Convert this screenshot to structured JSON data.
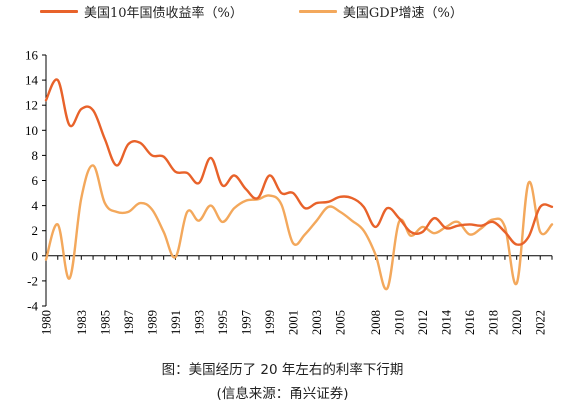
{
  "legend": {
    "series1": "美国10年国债收益率（%）",
    "series2": "美国GDP增速（%）"
  },
  "caption": {
    "title": "图：美国经历了 20 年左右的利率下行期",
    "source": "(信息来源：甬兴证券)"
  },
  "colors": {
    "yield": "#E8622A",
    "gdp": "#F3A85C",
    "axis": "#000000"
  },
  "chart_data": {
    "type": "line",
    "x": [
      1980,
      1981,
      1982,
      1983,
      1984,
      1985,
      1986,
      1987,
      1988,
      1989,
      1990,
      1991,
      1992,
      1993,
      1994,
      1995,
      1996,
      1997,
      1998,
      1999,
      2000,
      2001,
      2002,
      2003,
      2004,
      2005,
      2006,
      2007,
      2008,
      2009,
      2010,
      2011,
      2012,
      2013,
      2014,
      2015,
      2016,
      2017,
      2018,
      2019,
      2020,
      2021,
      2022,
      2023
    ],
    "x_tick_labels": [
      "1980",
      "1983",
      "1985",
      "1987",
      "1989",
      "1991",
      "1993",
      "1995",
      "1997",
      "1999",
      "2001",
      "2003",
      "2005",
      "2008",
      "2010",
      "2012",
      "2014",
      "2016",
      "2018",
      "2020",
      "2022"
    ],
    "x_ticks": [
      1980,
      1983,
      1985,
      1987,
      1989,
      1991,
      1993,
      1995,
      1997,
      1999,
      2001,
      2003,
      2005,
      2008,
      2010,
      2012,
      2014,
      2016,
      2018,
      2020,
      2022
    ],
    "y_ticks": [
      -4,
      -2,
      0,
      2,
      4,
      6,
      8,
      10,
      12,
      14,
      16
    ],
    "xlim": [
      1980,
      2023
    ],
    "ylim": [
      -4,
      16
    ],
    "legend_position": "top",
    "series": [
      {
        "name": "美国10年国债收益率（%）",
        "color": "#E8622A",
        "values": [
          12.4,
          14.0,
          10.4,
          11.7,
          11.6,
          9.3,
          7.2,
          8.9,
          9.0,
          8.0,
          7.9,
          6.7,
          6.6,
          5.8,
          7.8,
          5.6,
          6.4,
          5.3,
          4.6,
          6.4,
          5.0,
          5.0,
          3.8,
          4.2,
          4.3,
          4.7,
          4.6,
          3.9,
          2.3,
          3.8,
          3.0,
          1.9,
          1.9,
          3.0,
          2.2,
          2.4,
          2.5,
          2.4,
          2.7,
          1.9,
          0.9,
          1.5,
          3.9,
          3.9
        ]
      },
      {
        "name": "美国GDP增速（%）",
        "color": "#F3A85C",
        "values": [
          -0.3,
          2.5,
          -1.8,
          4.6,
          7.2,
          4.2,
          3.5,
          3.5,
          4.2,
          3.7,
          1.9,
          -0.1,
          3.5,
          2.8,
          4.0,
          2.7,
          3.8,
          4.4,
          4.5,
          4.8,
          4.1,
          1.0,
          1.7,
          2.8,
          3.9,
          3.5,
          2.8,
          2.0,
          0.1,
          -2.6,
          2.7,
          1.6,
          2.3,
          1.8,
          2.3,
          2.7,
          1.7,
          2.2,
          2.9,
          2.3,
          -2.2,
          5.8,
          1.9,
          2.5
        ]
      }
    ]
  }
}
